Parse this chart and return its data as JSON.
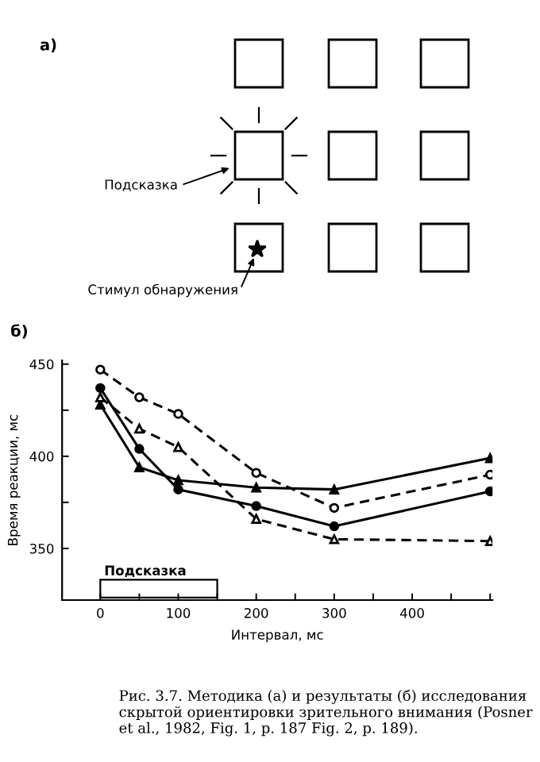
{
  "chart_data": [
    {
      "type": "other",
      "title": "а)",
      "annotations": [
        "Подсказка",
        "Стимул обнаружения"
      ]
    },
    {
      "type": "line",
      "title": "б)",
      "xlabel": "Интервал, мс",
      "ylabel": "Время реакции, мс",
      "xlim": [
        -49,
        503
      ],
      "ylim": [
        322,
        452
      ],
      "xticks": [
        0,
        {
          "value": 50,
          "label": null
        },
        100,
        {
          "value": 150,
          "label": null
        },
        200,
        {
          "value": 250,
          "label": null
        },
        300,
        {
          "value": 350,
          "label": null
        },
        400,
        {
          "value": 450,
          "label": null
        },
        {
          "value": 500,
          "label": null
        }
      ],
      "yticks": [
        350,
        {
          "value": 375,
          "label": null
        },
        400,
        {
          "value": 425,
          "label": null
        },
        450
      ],
      "x": [
        0,
        50,
        100,
        200,
        300,
        500
      ],
      "series": [
        {
          "color": "#000000",
          "marker": "circle",
          "line_style": "solid",
          "values": [
            437,
            404,
            382,
            373,
            362,
            381
          ]
        },
        {
          "color": "#000000",
          "marker": "triangle",
          "line_style": "solid",
          "values": [
            428,
            394,
            387,
            383,
            382,
            399
          ]
        },
        {
          "color": "#000000",
          "marker": "circle",
          "line_style": "dashed",
          "values": [
            447,
            432,
            423,
            391,
            372,
            390
          ]
        },
        {
          "color": "#000000",
          "marker": "triangle",
          "line_style": "dashed",
          "values": [
            432,
            415,
            405,
            366,
            355,
            354
          ]
        }
      ],
      "bands": [
        {
          "axis": "x",
          "from": 0,
          "to": 150,
          "label": "Подсказка",
          "color": "#ffffff"
        }
      ],
      "grid": false,
      "legend": false,
      "annotations": [
        "Рис. 3.7. Методика (а) и результаты (б) исследования скрытой ориентировки зрительного внимания (Posner et al., 1982, Fig. 1, p. 187 Fig. 2, p. 189)."
      ]
    }
  ]
}
